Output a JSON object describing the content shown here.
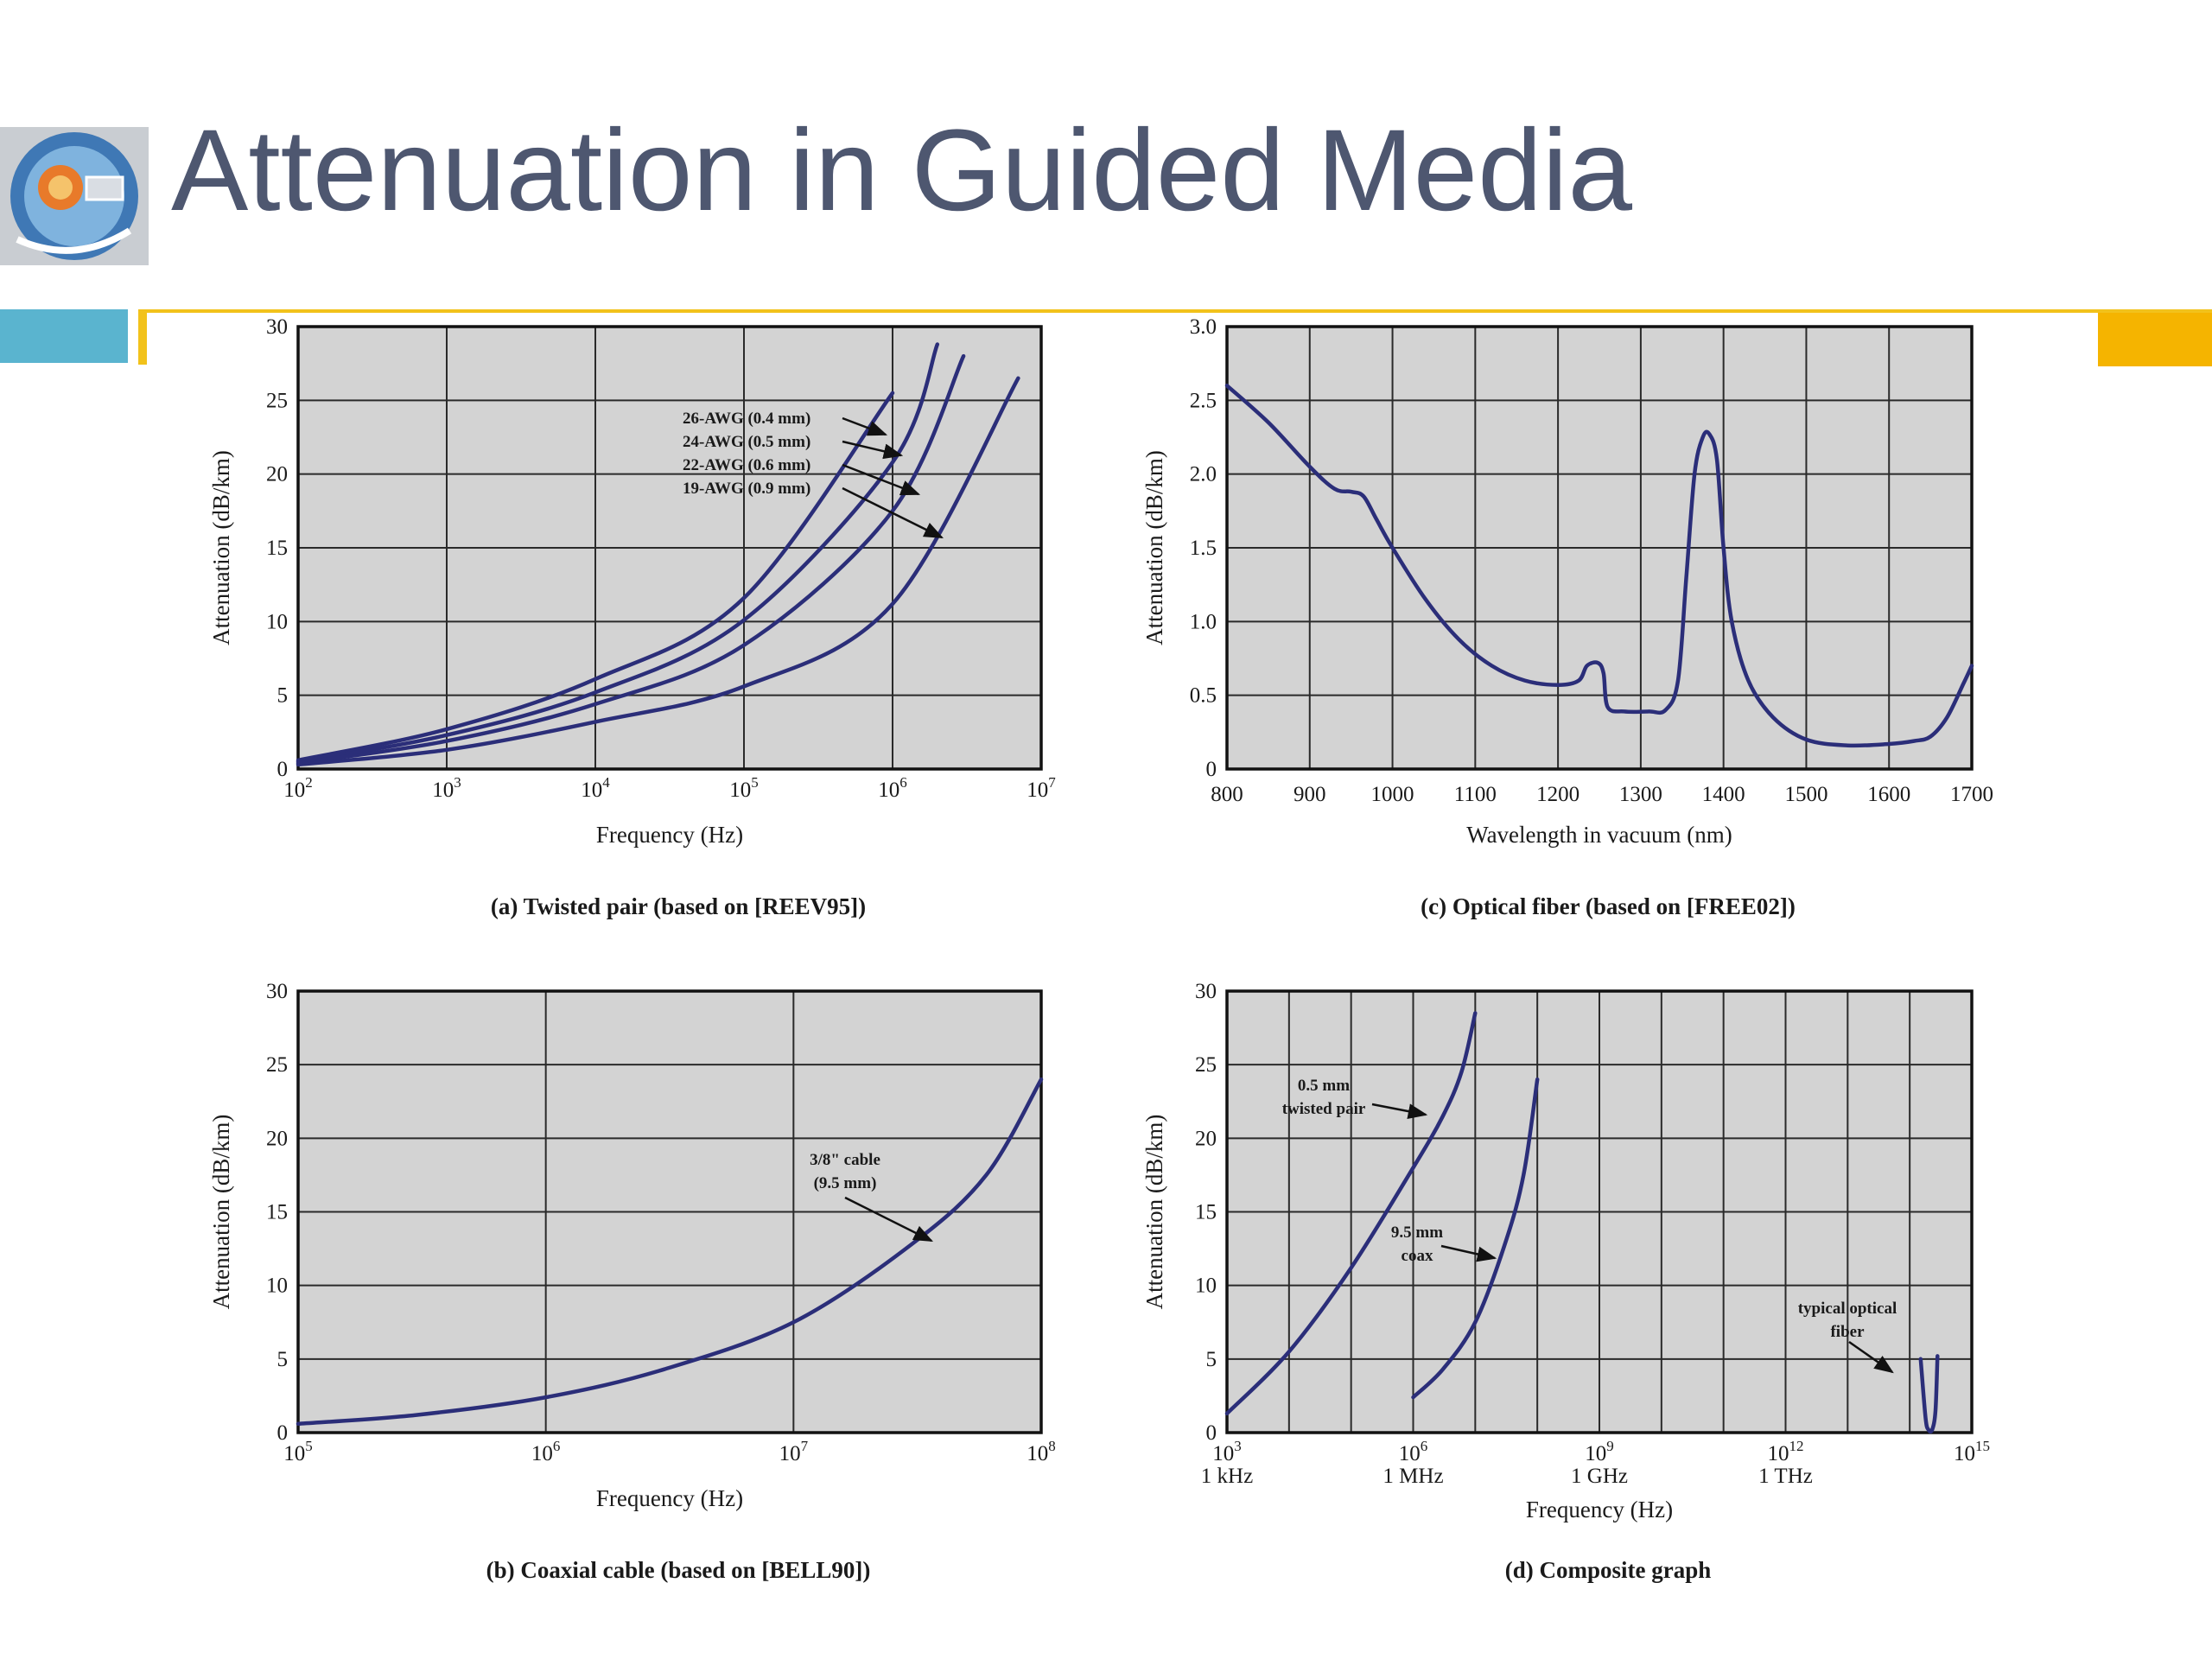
{
  "slide": {
    "title": "Attenuation in Guided Media",
    "accent_colors": {
      "title": "#4e5770",
      "left_bar": "#5ab4cf",
      "gold_line": "#f2c21b",
      "right_tab": "#f5b400"
    }
  },
  "chart_data": [
    {
      "id": "a",
      "type": "line",
      "caption": "(a) Twisted pair (based on [REEV95])",
      "xlabel": "Frequency (Hz)",
      "ylabel": "Attenuation (dB/km)",
      "x_scale": "log",
      "xlim": [
        100,
        10000000
      ],
      "ylim": [
        0,
        30
      ],
      "x_ticks": [
        {
          "v": 100,
          "b": "10",
          "e": "2"
        },
        {
          "v": 1000,
          "b": "10",
          "e": "3"
        },
        {
          "v": 10000,
          "b": "10",
          "e": "4"
        },
        {
          "v": 100000,
          "b": "10",
          "e": "5"
        },
        {
          "v": 1000000,
          "b": "10",
          "e": "6"
        },
        {
          "v": 10000000,
          "b": "10",
          "e": "7"
        }
      ],
      "y_ticks": [
        "0",
        "5",
        "10",
        "15",
        "20",
        "25",
        "30"
      ],
      "grid": true,
      "series": [
        {
          "name": "26-AWG (0.4 mm)",
          "x": [
            100,
            1000,
            10000,
            100000,
            1000000
          ],
          "y": [
            0.6,
            2.7,
            6.1,
            11.6,
            25.5
          ]
        },
        {
          "name": "24-AWG (0.5 mm)",
          "x": [
            100,
            1000,
            10000,
            100000,
            1000000,
            2000000
          ],
          "y": [
            0.5,
            2.3,
            5.2,
            10.1,
            20.8,
            28.8
          ]
        },
        {
          "name": "22-AWG (0.6 mm)",
          "x": [
            100,
            1000,
            10000,
            100000,
            1000000,
            3000000
          ],
          "y": [
            0.4,
            1.9,
            4.4,
            8.4,
            17.5,
            28
          ]
        },
        {
          "name": "19-AWG (0.9 mm)",
          "x": [
            100,
            1000,
            10000,
            100000,
            1000000,
            7000000
          ],
          "y": [
            0.3,
            1.3,
            3.2,
            5.6,
            11.2,
            26.5
          ]
        }
      ]
    },
    {
      "id": "c",
      "type": "line",
      "caption": "(c) Optical fiber (based on [FREE02])",
      "xlabel": "Wavelength in vacuum (nm)",
      "ylabel": "Attenuation (dB/km)",
      "x_scale": "linear",
      "xlim": [
        800,
        1700
      ],
      "ylim": [
        0,
        3.0
      ],
      "x_ticks": [
        {
          "v": 800,
          "t": "800"
        },
        {
          "v": 900,
          "t": "900"
        },
        {
          "v": 1000,
          "t": "1000"
        },
        {
          "v": 1100,
          "t": "1100"
        },
        {
          "v": 1200,
          "t": "1200"
        },
        {
          "v": 1300,
          "t": "1300"
        },
        {
          "v": 1400,
          "t": "1400"
        },
        {
          "v": 1500,
          "t": "1500"
        },
        {
          "v": 1600,
          "t": "1600"
        },
        {
          "v": 1700,
          "t": "1700"
        }
      ],
      "y_ticks": [
        "0",
        "0.5",
        "1.0",
        "1.5",
        "2.0",
        "2.5",
        "3.0"
      ],
      "grid": true,
      "series": [
        {
          "x": [
            800,
            850,
            900,
            930,
            950,
            965,
            980,
            1000,
            1040,
            1080,
            1120,
            1160,
            1200,
            1225,
            1235,
            1248,
            1255,
            1260,
            1280,
            1310,
            1330,
            1345,
            1355,
            1365,
            1375,
            1383,
            1392,
            1400,
            1410,
            1430,
            1460,
            1500,
            1550,
            1600,
            1630,
            1650,
            1670,
            1690,
            1700
          ],
          "y": [
            2.6,
            2.35,
            2.05,
            1.9,
            1.88,
            1.85,
            1.7,
            1.5,
            1.15,
            0.88,
            0.7,
            0.6,
            0.57,
            0.6,
            0.7,
            0.72,
            0.65,
            0.42,
            0.39,
            0.39,
            0.4,
            0.6,
            1.3,
            2.0,
            2.25,
            2.27,
            2.1,
            1.5,
            1.0,
            0.6,
            0.35,
            0.2,
            0.16,
            0.17,
            0.19,
            0.22,
            0.35,
            0.58,
            0.7
          ]
        }
      ]
    },
    {
      "id": "b",
      "type": "line",
      "caption": "(b) Coaxial cable (based on [BELL90])",
      "xlabel": "Frequency (Hz)",
      "ylabel": "Attenuation (dB/km)",
      "x_scale": "log",
      "xlim": [
        100000,
        100000000
      ],
      "ylim": [
        0,
        30
      ],
      "x_ticks": [
        {
          "v": 100000,
          "b": "10",
          "e": "5"
        },
        {
          "v": 1000000,
          "b": "10",
          "e": "6"
        },
        {
          "v": 10000000,
          "b": "10",
          "e": "7"
        },
        {
          "v": 100000000,
          "b": "10",
          "e": "8"
        }
      ],
      "y_ticks": [
        "0",
        "5",
        "10",
        "15",
        "20",
        "25",
        "30"
      ],
      "grid": true,
      "series": [
        {
          "name": "3/8\" cable (9.5 mm)",
          "x": [
            100000,
            300000,
            1000000,
            3000000,
            10000000,
            30000000,
            60000000,
            100000000
          ],
          "y": [
            0.6,
            1.2,
            2.4,
            4.3,
            7.5,
            12.8,
            17.5,
            24
          ]
        }
      ]
    },
    {
      "id": "d",
      "type": "line",
      "caption": "(d) Composite graph",
      "xlabel": "Frequency (Hz)",
      "ylabel": "Attenuation (dB/km)",
      "x_scale": "log",
      "xlim": [
        1000,
        1000000000000000
      ],
      "ylim": [
        0,
        30
      ],
      "x_ticks": [
        {
          "v": 1000,
          "b": "10",
          "e": "3",
          "sub": "1 kHz"
        },
        {
          "v": 1000000,
          "b": "10",
          "e": "6",
          "sub": "1 MHz"
        },
        {
          "v": 1000000000,
          "b": "10",
          "e": "9",
          "sub": "1 GHz"
        },
        {
          "v": 1000000000000,
          "b": "10",
          "e": "12",
          "sub": "1 THz"
        },
        {
          "v": 1000000000000000,
          "b": "10",
          "e": "15",
          "sub": ""
        }
      ],
      "y_ticks": [
        "0",
        "5",
        "10",
        "15",
        "20",
        "25",
        "30"
      ],
      "grid": true,
      "series": [
        {
          "name": "0.5 mm twisted pair",
          "x": [
            1000,
            10000,
            100000,
            1000000,
            3000000,
            6000000,
            10000000
          ],
          "y": [
            1.3,
            5.5,
            11.2,
            18.0,
            21.5,
            24.5,
            28.5
          ]
        },
        {
          "name": "9.5 mm coax",
          "x": [
            1000000,
            3000000,
            10000000,
            30000000,
            60000000,
            100000000
          ],
          "y": [
            2.4,
            4.3,
            7.5,
            12.8,
            17.5,
            24
          ]
        },
        {
          "name": "typical optical fiber",
          "x": [
            150000000000000,
            180000000000000,
            200000000000000,
            230000000000000,
            260000000000000,
            280000000000000
          ],
          "y": [
            5,
            1.0,
            0.2,
            0.2,
            1.5,
            5.2
          ]
        }
      ]
    }
  ],
  "annotations": {
    "a_labels": [
      "26-AWG (0.4 mm)",
      "24-AWG (0.5 mm)",
      "22-AWG (0.6 mm)",
      "19-AWG (0.9 mm)"
    ],
    "b_label_1": "3/8\" cable",
    "b_label_2": "(9.5 mm)",
    "d_tp_1": "0.5 mm",
    "d_tp_2": "twisted pair",
    "d_coax_1": "9.5 mm",
    "d_coax_2": "coax",
    "d_fiber_1": "typical optical",
    "d_fiber_2": "fiber"
  }
}
